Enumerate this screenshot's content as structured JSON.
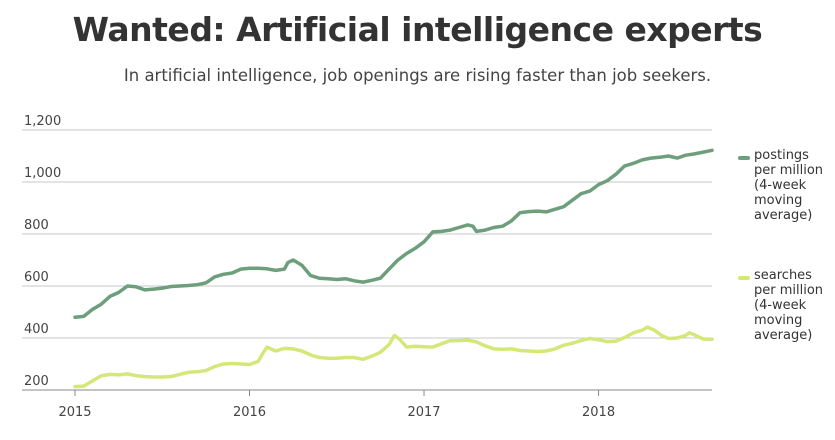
{
  "title": "Wanted: Artificial intelligence experts",
  "subtitle": "In artificial intelligence, job openings are rising faster than job seekers.",
  "chart_data": {
    "type": "line",
    "ylim": [
      200,
      1200
    ],
    "yticks": [
      200,
      400,
      600,
      800,
      1000,
      1200
    ],
    "ytick_labels": [
      "200",
      "400",
      "600",
      "800",
      "1,000",
      "1,200"
    ],
    "xlim": [
      2015.0,
      2018.65
    ],
    "xticks": [
      2015,
      2016,
      2017,
      2018
    ],
    "xtick_labels": [
      "2015",
      "2016",
      "2017",
      "2018"
    ],
    "grid": "horizontal",
    "legend_position": "right",
    "series": [
      {
        "name": "postings per million (4-week moving average)",
        "color": "#6d9f7d",
        "points": [
          [
            2015.0,
            480
          ],
          [
            2015.05,
            483
          ],
          [
            2015.1,
            510
          ],
          [
            2015.15,
            530
          ],
          [
            2015.2,
            560
          ],
          [
            2015.25,
            575
          ],
          [
            2015.3,
            600
          ],
          [
            2015.35,
            597
          ],
          [
            2015.4,
            585
          ],
          [
            2015.45,
            588
          ],
          [
            2015.5,
            592
          ],
          [
            2015.55,
            598
          ],
          [
            2015.6,
            600
          ],
          [
            2015.65,
            602
          ],
          [
            2015.7,
            605
          ],
          [
            2015.75,
            612
          ],
          [
            2015.8,
            635
          ],
          [
            2015.85,
            645
          ],
          [
            2015.9,
            650
          ],
          [
            2015.95,
            665
          ],
          [
            2016.0,
            668
          ],
          [
            2016.05,
            668
          ],
          [
            2016.1,
            666
          ],
          [
            2016.15,
            660
          ],
          [
            2016.2,
            665
          ],
          [
            2016.22,
            690
          ],
          [
            2016.25,
            700
          ],
          [
            2016.3,
            680
          ],
          [
            2016.35,
            640
          ],
          [
            2016.4,
            630
          ],
          [
            2016.45,
            628
          ],
          [
            2016.5,
            625
          ],
          [
            2016.55,
            628
          ],
          [
            2016.6,
            620
          ],
          [
            2016.65,
            615
          ],
          [
            2016.7,
            622
          ],
          [
            2016.75,
            630
          ],
          [
            2016.8,
            665
          ],
          [
            2016.85,
            700
          ],
          [
            2016.9,
            725
          ],
          [
            2016.95,
            745
          ],
          [
            2017.0,
            770
          ],
          [
            2017.05,
            808
          ],
          [
            2017.1,
            810
          ],
          [
            2017.15,
            815
          ],
          [
            2017.2,
            825
          ],
          [
            2017.25,
            835
          ],
          [
            2017.28,
            830
          ],
          [
            2017.3,
            810
          ],
          [
            2017.35,
            815
          ],
          [
            2017.4,
            825
          ],
          [
            2017.45,
            830
          ],
          [
            2017.5,
            850
          ],
          [
            2017.55,
            882
          ],
          [
            2017.6,
            886
          ],
          [
            2017.65,
            888
          ],
          [
            2017.7,
            885
          ],
          [
            2017.75,
            895
          ],
          [
            2017.8,
            905
          ],
          [
            2017.85,
            930
          ],
          [
            2017.9,
            955
          ],
          [
            2017.95,
            965
          ],
          [
            2018.0,
            990
          ],
          [
            2018.05,
            1005
          ],
          [
            2018.1,
            1030
          ],
          [
            2018.15,
            1062
          ],
          [
            2018.2,
            1072
          ],
          [
            2018.25,
            1085
          ],
          [
            2018.3,
            1092
          ],
          [
            2018.35,
            1095
          ],
          [
            2018.4,
            1100
          ],
          [
            2018.45,
            1092
          ],
          [
            2018.5,
            1103
          ],
          [
            2018.55,
            1108
          ],
          [
            2018.6,
            1115
          ],
          [
            2018.65,
            1122
          ]
        ]
      },
      {
        "name": "searches per million (4-week moving average)",
        "color": "#d4e87a",
        "points": [
          [
            2015.0,
            213
          ],
          [
            2015.05,
            215
          ],
          [
            2015.1,
            235
          ],
          [
            2015.15,
            255
          ],
          [
            2015.2,
            260
          ],
          [
            2015.25,
            258
          ],
          [
            2015.3,
            262
          ],
          [
            2015.35,
            255
          ],
          [
            2015.4,
            252
          ],
          [
            2015.45,
            250
          ],
          [
            2015.5,
            250
          ],
          [
            2015.55,
            252
          ],
          [
            2015.6,
            260
          ],
          [
            2015.65,
            268
          ],
          [
            2015.7,
            270
          ],
          [
            2015.75,
            275
          ],
          [
            2015.8,
            290
          ],
          [
            2015.85,
            300
          ],
          [
            2015.9,
            302
          ],
          [
            2015.95,
            300
          ],
          [
            2016.0,
            298
          ],
          [
            2016.05,
            310
          ],
          [
            2016.08,
            345
          ],
          [
            2016.1,
            365
          ],
          [
            2016.15,
            350
          ],
          [
            2016.2,
            360
          ],
          [
            2016.25,
            358
          ],
          [
            2016.3,
            350
          ],
          [
            2016.35,
            335
          ],
          [
            2016.4,
            325
          ],
          [
            2016.45,
            322
          ],
          [
            2016.5,
            322
          ],
          [
            2016.55,
            325
          ],
          [
            2016.6,
            325
          ],
          [
            2016.65,
            318
          ],
          [
            2016.7,
            330
          ],
          [
            2016.75,
            345
          ],
          [
            2016.8,
            375
          ],
          [
            2016.83,
            410
          ],
          [
            2016.86,
            395
          ],
          [
            2016.9,
            365
          ],
          [
            2016.95,
            368
          ],
          [
            2017.0,
            366
          ],
          [
            2017.05,
            365
          ],
          [
            2017.1,
            378
          ],
          [
            2017.15,
            390
          ],
          [
            2017.2,
            390
          ],
          [
            2017.25,
            392
          ],
          [
            2017.3,
            385
          ],
          [
            2017.35,
            370
          ],
          [
            2017.4,
            358
          ],
          [
            2017.45,
            357
          ],
          [
            2017.5,
            358
          ],
          [
            2017.55,
            352
          ],
          [
            2017.6,
            350
          ],
          [
            2017.65,
            348
          ],
          [
            2017.7,
            350
          ],
          [
            2017.75,
            358
          ],
          [
            2017.8,
            372
          ],
          [
            2017.85,
            380
          ],
          [
            2017.9,
            390
          ],
          [
            2017.95,
            398
          ],
          [
            2018.0,
            393
          ],
          [
            2018.05,
            386
          ],
          [
            2018.1,
            388
          ],
          [
            2018.15,
            402
          ],
          [
            2018.2,
            420
          ],
          [
            2018.25,
            430
          ],
          [
            2018.28,
            442
          ],
          [
            2018.32,
            430
          ],
          [
            2018.36,
            410
          ],
          [
            2018.4,
            398
          ],
          [
            2018.45,
            400
          ],
          [
            2018.5,
            410
          ],
          [
            2018.52,
            420
          ],
          [
            2018.55,
            412
          ],
          [
            2018.6,
            396
          ],
          [
            2018.65,
            395
          ]
        ]
      }
    ]
  },
  "legend": {
    "postings_label": "postings per million (4-week moving average)",
    "searches_label": "searches per million (4-week moving average)"
  }
}
